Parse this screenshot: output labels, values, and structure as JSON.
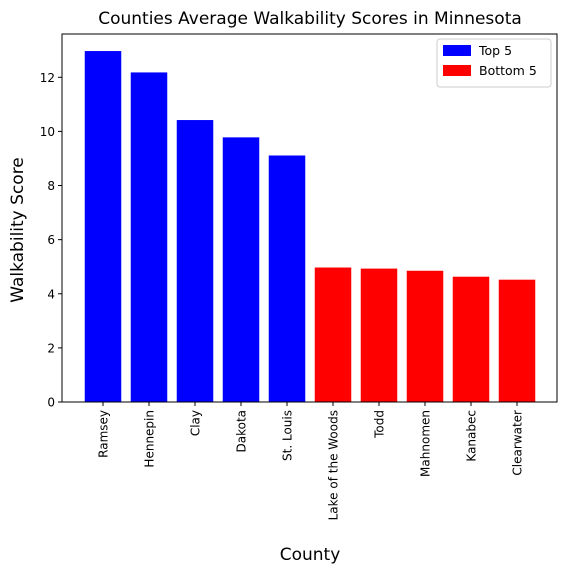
{
  "chart_data": {
    "type": "bar",
    "title": "Counties Average Walkability Scores in Minnesota",
    "xlabel": "County",
    "ylabel": "Walkability Score",
    "ylim": [
      0,
      13.6
    ],
    "yticks": [
      0,
      2,
      4,
      6,
      8,
      10,
      12
    ],
    "grid": false,
    "legend_position": "top-right",
    "categories": [
      "Ramsey",
      "Hennepin",
      "Clay",
      "Dakota",
      "St. Louis",
      "Lake of the Woods",
      "Todd",
      "Mahnomen",
      "Kanabec",
      "Clearwater"
    ],
    "values": [
      12.97,
      12.18,
      10.42,
      9.78,
      9.11,
      4.97,
      4.93,
      4.85,
      4.63,
      4.52
    ],
    "groups": [
      "Top 5",
      "Top 5",
      "Top 5",
      "Top 5",
      "Top 5",
      "Bottom 5",
      "Bottom 5",
      "Bottom 5",
      "Bottom 5",
      "Bottom 5"
    ],
    "legend": [
      {
        "name": "Top 5",
        "color": "#0000ff"
      },
      {
        "name": "Bottom 5",
        "color": "#ff0000"
      }
    ]
  }
}
